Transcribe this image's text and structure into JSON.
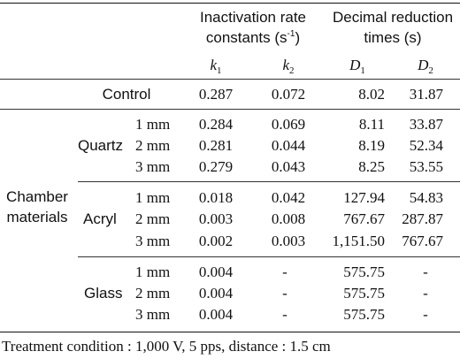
{
  "header": {
    "group1_line1": "Inactivation rate",
    "group1_line2": "constants (s",
    "group1_sup": "-1",
    "group1_close": ")",
    "group2_line1": "Decimal reduction",
    "group2_line2": "times (s)",
    "col_k1_var": "k",
    "col_k1_sub": "1",
    "col_k2_var": "k",
    "col_k2_sub": "2",
    "col_d1_var": "D",
    "col_d1_sub": "1",
    "col_d2_var": "D",
    "col_d2_sub": "2"
  },
  "side_label_line1": "Chamber",
  "side_label_line2": "materials",
  "control": {
    "label": "Control",
    "k1": "0.287",
    "k2": "0.072",
    "d1": "8.02",
    "d2": "31.87"
  },
  "groups": [
    {
      "name": "Quartz",
      "rows": [
        {
          "thickness": "1 mm",
          "k1": "0.284",
          "k2": "0.069",
          "d1": "8.11",
          "d2": "33.87"
        },
        {
          "thickness": "2 mm",
          "k1": "0.281",
          "k2": "0.044",
          "d1": "8.19",
          "d2": "52.34"
        },
        {
          "thickness": "3 mm",
          "k1": "0.279",
          "k2": "0.043",
          "d1": "8.25",
          "d2": "53.55"
        }
      ]
    },
    {
      "name": "Acryl",
      "rows": [
        {
          "thickness": "1 mm",
          "k1": "0.018",
          "k2": "0.042",
          "d1": "127.94",
          "d2": "54.83"
        },
        {
          "thickness": "2 mm",
          "k1": "0.003",
          "k2": "0.008",
          "d1": "767.67",
          "d2": "287.87"
        },
        {
          "thickness": "3 mm",
          "k1": "0.002",
          "k2": "0.003",
          "d1": "1,151.50",
          "d2": "767.67"
        }
      ]
    },
    {
      "name": "Glass",
      "rows": [
        {
          "thickness": "1 mm",
          "k1": "0.004",
          "k2": "-",
          "d1": "575.75",
          "d2": "-"
        },
        {
          "thickness": "2 mm",
          "k1": "0.004",
          "k2": "-",
          "d1": "575.75",
          "d2": "-"
        },
        {
          "thickness": "3 mm",
          "k1": "0.004",
          "k2": "-",
          "d1": "575.75",
          "d2": "-"
        }
      ]
    }
  ],
  "footnote": "Treatment condition : 1,000 V, 5 pps, distance : 1.5 cm"
}
